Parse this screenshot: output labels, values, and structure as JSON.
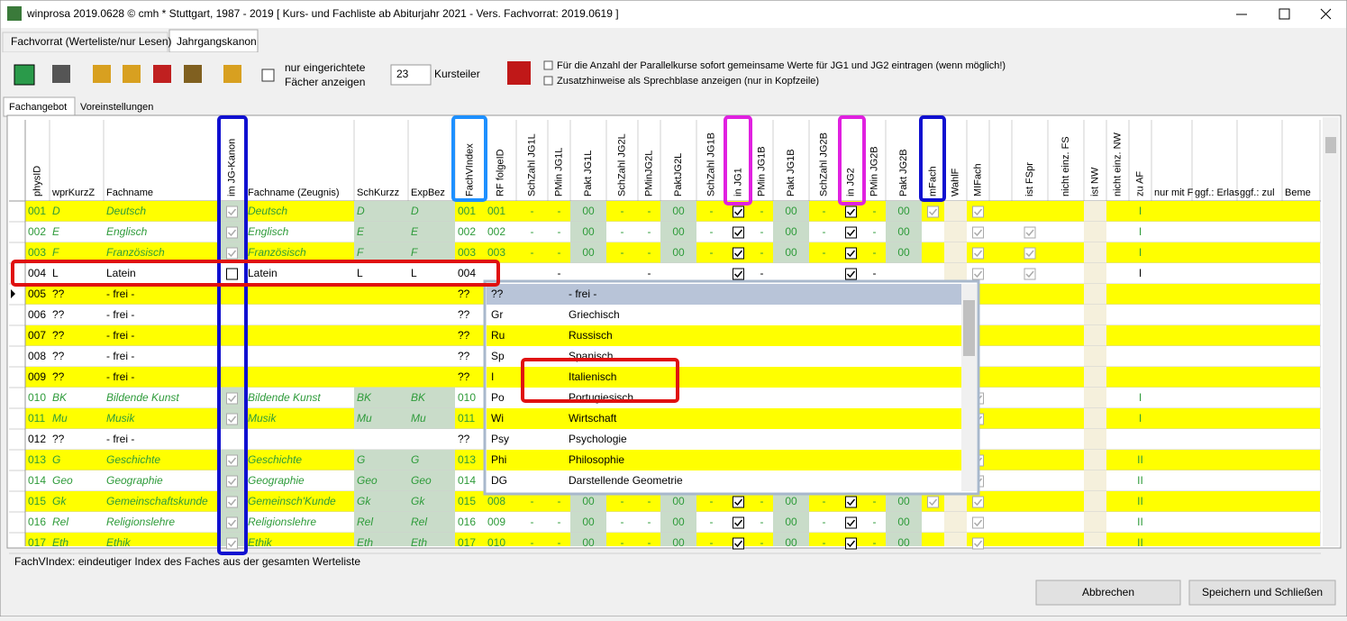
{
  "window": {
    "title": "winprosa 2019.0628 © cmh * Stuttgart, 1987 - 2019 [ Kurs- und Fachliste ab Abiturjahr 2021 - Vers. Fachvorrat: 2019.0619 ]"
  },
  "tabs": [
    "Fachvorrat (Werteliste/nur Lesen)",
    "Jahrgangskanon"
  ],
  "toolbar": {
    "filter_label": [
      "nur eingerichtete",
      "Fächer anzeigen"
    ],
    "kursteiler_value": "23",
    "kursteiler_label": "Kursteiler",
    "options": [
      "Für die Anzahl der Parallelkurse sofort gemeinsame Werte für JG1 und JG2 eintragen  (wenn möglich!)",
      "Zusatzhinweise als Sprechblase anzeigen (nur in Kopfzeile)"
    ]
  },
  "subtabs": [
    "Fachangebot",
    "Voreinstellungen"
  ],
  "columns": [
    "physID",
    "wprKurzZ",
    "Fachname",
    "im JG-Kanon",
    "Fachname (Zeugnis)",
    "SchKurzz",
    "ExpBez",
    "FachVIndex",
    "RF folgeID",
    "SchZahl JG1L",
    "PMin JG1L",
    "Pakt JG1L",
    "SchZahl JG2L",
    "PMinJG2L",
    "PaktJG2L",
    "SchZahl JG1B",
    "in JG1",
    "PMin JG1B",
    "Pakt JG1B",
    "SchZahl JG2B",
    "in JG2",
    "PMin JG2B",
    "Pakt JG2B",
    "mFach",
    "WahlF",
    "MIFach",
    null,
    "ist FSpr",
    "nicht einz. FS",
    "ist NW",
    "nicht einz. NW",
    "zu AF",
    "nur mit F",
    "ggf.: Erlas",
    "ggf.: zul",
    "Beme"
  ],
  "rows": [
    {
      "color": "#2e9b3a",
      "cells": [
        "001",
        "D",
        "Deutsch",
        true,
        "Deutsch",
        "D",
        "D",
        "001",
        "001",
        "-",
        "-",
        "00",
        "-",
        "-",
        "00",
        "-",
        true,
        "-",
        "00",
        "-",
        true,
        "-",
        "00",
        true,
        null,
        true,
        null,
        null,
        null,
        null,
        null,
        "I",
        null,
        null,
        null,
        null
      ]
    },
    {
      "color": "#2e9b3a",
      "cells": [
        "002",
        "E",
        "Englisch",
        true,
        "Englisch",
        "E",
        "E",
        "002",
        "002",
        "-",
        "-",
        "00",
        "-",
        "-",
        "00",
        "-",
        true,
        "-",
        "00",
        "-",
        true,
        "-",
        "00",
        null,
        null,
        true,
        null,
        true,
        null,
        null,
        null,
        "I",
        null,
        null,
        null,
        null
      ]
    },
    {
      "color": "#2e9b3a",
      "cells": [
        "003",
        "F",
        "Französisch",
        true,
        "Französisch",
        "F",
        "F",
        "003",
        "003",
        "-",
        "-",
        "00",
        "-",
        "-",
        "00",
        "-",
        true,
        "-",
        "00",
        "-",
        true,
        "-",
        "00",
        null,
        null,
        true,
        null,
        true,
        null,
        null,
        null,
        "I",
        null,
        null,
        null,
        null
      ]
    },
    {
      "color": "#000000",
      "cells": [
        "004",
        "L",
        "Latein",
        false,
        "Latein",
        "L",
        "L",
        "004",
        null,
        null,
        "-",
        null,
        null,
        "-",
        null,
        null,
        true,
        "-",
        null,
        null,
        true,
        "-",
        null,
        null,
        null,
        true,
        null,
        true,
        null,
        null,
        null,
        "I",
        null,
        null,
        null,
        null
      ]
    },
    {
      "color": "#000000",
      "cells": [
        "005",
        "??",
        "- frei -",
        null,
        null,
        null,
        null,
        "??",
        null,
        null,
        null,
        null,
        null,
        null,
        null,
        null,
        null,
        null,
        null,
        null,
        null,
        null,
        null,
        null,
        null,
        null,
        null,
        null,
        null,
        null,
        null,
        null,
        null,
        null,
        null,
        null
      ]
    },
    {
      "color": "#000000",
      "cells": [
        "006",
        "??",
        "- frei -",
        null,
        null,
        null,
        null,
        "??",
        null,
        null,
        null,
        null,
        null,
        null,
        null,
        null,
        null,
        null,
        null,
        null,
        null,
        null,
        null,
        null,
        null,
        null,
        null,
        null,
        null,
        null,
        null,
        null,
        null,
        null,
        null,
        null
      ]
    },
    {
      "color": "#000000",
      "cells": [
        "007",
        "??",
        "- frei -",
        null,
        null,
        null,
        null,
        "??",
        null,
        null,
        null,
        null,
        null,
        null,
        null,
        null,
        null,
        null,
        null,
        null,
        null,
        null,
        null,
        null,
        null,
        null,
        null,
        null,
        null,
        null,
        null,
        null,
        null,
        null,
        null,
        null
      ]
    },
    {
      "color": "#000000",
      "cells": [
        "008",
        "??",
        "- frei -",
        null,
        null,
        null,
        null,
        "??",
        null,
        null,
        null,
        null,
        null,
        null,
        null,
        null,
        null,
        null,
        null,
        null,
        null,
        null,
        null,
        null,
        null,
        null,
        null,
        null,
        null,
        null,
        null,
        null,
        null,
        null,
        null,
        null
      ]
    },
    {
      "color": "#000000",
      "cells": [
        "009",
        "??",
        "- frei -",
        null,
        null,
        null,
        null,
        "??",
        null,
        null,
        null,
        null,
        null,
        null,
        null,
        null,
        null,
        null,
        null,
        null,
        null,
        null,
        null,
        null,
        null,
        null,
        null,
        null,
        null,
        null,
        null,
        null,
        null,
        null,
        null,
        null
      ]
    },
    {
      "color": "#2e9b3a",
      "cells": [
        "010",
        "BK",
        "Bildende Kunst",
        true,
        "Bildende Kunst",
        "BK",
        "BK",
        "010",
        null,
        null,
        null,
        null,
        null,
        null,
        null,
        null,
        null,
        null,
        null,
        null,
        null,
        null,
        null,
        null,
        null,
        true,
        null,
        null,
        null,
        null,
        null,
        "I",
        null,
        null,
        null,
        null
      ]
    },
    {
      "color": "#2e9b3a",
      "cells": [
        "011",
        "Mu",
        "Musik",
        true,
        "Musik",
        "Mu",
        "Mu",
        "011",
        null,
        null,
        null,
        null,
        null,
        null,
        null,
        null,
        null,
        null,
        null,
        null,
        null,
        null,
        null,
        null,
        null,
        true,
        null,
        null,
        null,
        null,
        null,
        "I",
        null,
        null,
        null,
        null
      ]
    },
    {
      "color": "#000000",
      "cells": [
        "012",
        "??",
        "- frei -",
        null,
        null,
        null,
        null,
        "??",
        null,
        null,
        null,
        null,
        null,
        null,
        null,
        null,
        null,
        null,
        null,
        null,
        null,
        null,
        null,
        null,
        null,
        null,
        null,
        null,
        null,
        null,
        null,
        null,
        null,
        null,
        null,
        null
      ]
    },
    {
      "color": "#2e9b3a",
      "cells": [
        "013",
        "G",
        "Geschichte",
        true,
        "Geschichte",
        "G",
        "G",
        "013",
        null,
        null,
        null,
        null,
        null,
        null,
        null,
        null,
        null,
        null,
        null,
        null,
        null,
        null,
        null,
        null,
        null,
        true,
        null,
        null,
        null,
        null,
        null,
        "II",
        null,
        null,
        null,
        null
      ]
    },
    {
      "color": "#2e9b3a",
      "cells": [
        "014",
        "Geo",
        "Geographie",
        true,
        "Geographie",
        "Geo",
        "Geo",
        "014",
        null,
        null,
        null,
        null,
        null,
        null,
        null,
        null,
        null,
        null,
        null,
        null,
        null,
        null,
        null,
        null,
        null,
        true,
        null,
        null,
        null,
        null,
        null,
        "II",
        null,
        null,
        null,
        null
      ]
    },
    {
      "color": "#2e9b3a",
      "cells": [
        "015",
        "Gk",
        "Gemeinschaftskunde",
        true,
        "Gemeinsch'Kunde",
        "Gk",
        "Gk",
        "015",
        "008",
        "-",
        "-",
        "00",
        "-",
        "-",
        "00",
        "-",
        true,
        "-",
        "00",
        "-",
        true,
        "-",
        "00",
        true,
        null,
        true,
        null,
        null,
        null,
        null,
        null,
        "II",
        null,
        null,
        null,
        null
      ]
    },
    {
      "color": "#2e9b3a",
      "cells": [
        "016",
        "Rel",
        "Religionslehre",
        true,
        "Religionslehre",
        "Rel",
        "Rel",
        "016",
        "009",
        "-",
        "-",
        "00",
        "-",
        "-",
        "00",
        "-",
        true,
        "-",
        "00",
        "-",
        true,
        "-",
        "00",
        null,
        null,
        true,
        null,
        null,
        null,
        null,
        null,
        "II",
        null,
        null,
        null,
        null
      ]
    },
    {
      "color": "#2e9b3a",
      "cells": [
        "017",
        "Eth",
        "Ethik",
        true,
        "Ethik",
        "Eth",
        "Eth",
        "017",
        "010",
        "-",
        "-",
        "00",
        "-",
        "-",
        "00",
        "-",
        true,
        "-",
        "00",
        "-",
        true,
        "-",
        "00",
        null,
        null,
        true,
        null,
        null,
        null,
        null,
        null,
        "II",
        null,
        null,
        null,
        null
      ]
    }
  ],
  "dropdown": [
    [
      "??",
      "- frei -"
    ],
    [
      "Gr",
      "Griechisch"
    ],
    [
      "Ru",
      "Russisch"
    ],
    [
      "Sp",
      "Spanisch"
    ],
    [
      "I",
      "Italienisch"
    ],
    [
      "Po",
      "Portugiesisch"
    ],
    [
      "Wi",
      "Wirtschaft"
    ],
    [
      "Psy",
      "Psychologie"
    ],
    [
      "Phi",
      "Philosophie"
    ],
    [
      "DG",
      "Darstellende Geometrie"
    ]
  ],
  "status": "FachVIndex: eindeutiger Index des Faches aus der gesamten Werteliste",
  "buttons": [
    "Abbrechen",
    "Speichern und Schließen"
  ]
}
